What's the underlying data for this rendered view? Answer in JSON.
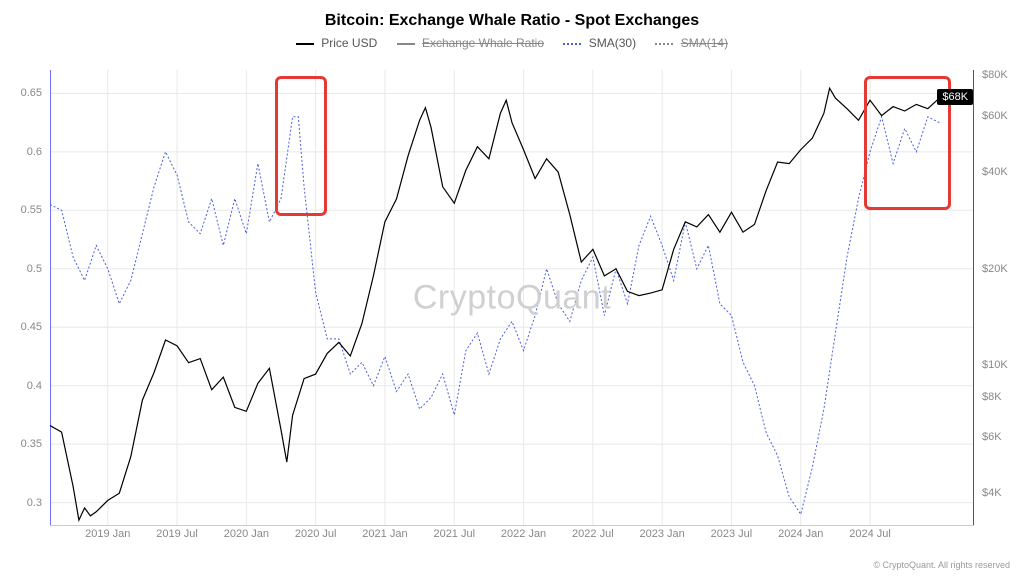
{
  "title": "Bitcoin: Exchange Whale Ratio - Spot Exchanges",
  "legend": {
    "items": [
      {
        "label": "Price USD",
        "color": "#000000",
        "dash": "solid",
        "strike": false
      },
      {
        "label": "Exchange Whale Ratio",
        "color": "#888888",
        "dash": "solid",
        "strike": true
      },
      {
        "label": "SMA(30)",
        "color": "#4a5fe0",
        "dash": "dotted",
        "strike": false
      },
      {
        "label": "SMA(14)",
        "color": "#888888",
        "dash": "dotted",
        "strike": true
      }
    ]
  },
  "watermark": "CryptoQuant",
  "footer": "© CryptoQuant. All rights reserved",
  "plot": {
    "background": "#ffffff",
    "grid_color": "#e8e8e8",
    "axis_color": "#6f6fff",
    "axis_width": 1,
    "x": {
      "min": 0,
      "max": 80,
      "ticks": [
        {
          "pos": 5,
          "label": "2019 Jan"
        },
        {
          "pos": 11,
          "label": "2019 Jul"
        },
        {
          "pos": 17,
          "label": "2020 Jan"
        },
        {
          "pos": 23,
          "label": "2020 Jul"
        },
        {
          "pos": 29,
          "label": "2021 Jan"
        },
        {
          "pos": 35,
          "label": "2021 Jul"
        },
        {
          "pos": 41,
          "label": "2022 Jan"
        },
        {
          "pos": 47,
          "label": "2022 Jul"
        },
        {
          "pos": 53,
          "label": "2023 Jan"
        },
        {
          "pos": 59,
          "label": "2023 Jul"
        },
        {
          "pos": 65,
          "label": "2024 Jan"
        },
        {
          "pos": 71,
          "label": "2024 Jul"
        }
      ]
    },
    "y_left": {
      "min": 0.28,
      "max": 0.67,
      "ticks": [
        {
          "v": 0.3,
          "label": "0.3"
        },
        {
          "v": 0.35,
          "label": "0.35"
        },
        {
          "v": 0.4,
          "label": "0.4"
        },
        {
          "v": 0.45,
          "label": "0.45"
        },
        {
          "v": 0.5,
          "label": "0.5"
        },
        {
          "v": 0.55,
          "label": "0.55"
        },
        {
          "v": 0.6,
          "label": "0.6"
        },
        {
          "v": 0.65,
          "label": "0.65"
        }
      ]
    },
    "y_right": {
      "type": "log",
      "min_log": 3.5,
      "max_log": 4.92,
      "ticks": [
        {
          "v": 4000,
          "label": "$4K"
        },
        {
          "v": 6000,
          "label": "$6K"
        },
        {
          "v": 8000,
          "label": "$8K"
        },
        {
          "v": 10000,
          "label": "$10K"
        },
        {
          "v": 20000,
          "label": "$20K"
        },
        {
          "v": 40000,
          "label": "$40K"
        },
        {
          "v": 60000,
          "label": "$60K"
        },
        {
          "v": 80000,
          "label": "$80K"
        }
      ]
    },
    "series": {
      "price_usd": {
        "axis": "right",
        "color": "#000000",
        "width": 1.2,
        "dash": "none",
        "points": [
          [
            0,
            6500
          ],
          [
            1,
            6200
          ],
          [
            2,
            4200
          ],
          [
            2.5,
            3300
          ],
          [
            3,
            3600
          ],
          [
            3.5,
            3400
          ],
          [
            4,
            3500
          ],
          [
            5,
            3800
          ],
          [
            6,
            4000
          ],
          [
            7,
            5200
          ],
          [
            8,
            7800
          ],
          [
            9,
            9500
          ],
          [
            10,
            12000
          ],
          [
            11,
            11500
          ],
          [
            12,
            10200
          ],
          [
            13,
            10500
          ],
          [
            14,
            8400
          ],
          [
            15,
            9200
          ],
          [
            16,
            7400
          ],
          [
            17,
            7200
          ],
          [
            18,
            8800
          ],
          [
            19,
            9800
          ],
          [
            20,
            6300
          ],
          [
            20.5,
            5000
          ],
          [
            21,
            7000
          ],
          [
            22,
            9100
          ],
          [
            23,
            9400
          ],
          [
            24,
            10900
          ],
          [
            25,
            11800
          ],
          [
            26,
            10700
          ],
          [
            27,
            13500
          ],
          [
            28,
            19000
          ],
          [
            29,
            28000
          ],
          [
            30,
            33000
          ],
          [
            31,
            45000
          ],
          [
            32,
            58000
          ],
          [
            32.5,
            63500
          ],
          [
            33,
            55000
          ],
          [
            34,
            36000
          ],
          [
            35,
            32000
          ],
          [
            36,
            40500
          ],
          [
            37,
            48000
          ],
          [
            38,
            44000
          ],
          [
            39,
            61000
          ],
          [
            39.5,
            67000
          ],
          [
            40,
            57000
          ],
          [
            41,
            47000
          ],
          [
            42,
            38200
          ],
          [
            43,
            44000
          ],
          [
            44,
            40000
          ],
          [
            45,
            29500
          ],
          [
            46,
            21000
          ],
          [
            47,
            23000
          ],
          [
            48,
            19000
          ],
          [
            49,
            20000
          ],
          [
            50,
            17000
          ],
          [
            51,
            16500
          ],
          [
            52,
            16800
          ],
          [
            53,
            17200
          ],
          [
            54,
            23000
          ],
          [
            55,
            28000
          ],
          [
            56,
            27000
          ],
          [
            57,
            29500
          ],
          [
            58,
            26000
          ],
          [
            59,
            30000
          ],
          [
            60,
            26000
          ],
          [
            61,
            27500
          ],
          [
            62,
            35000
          ],
          [
            63,
            43000
          ],
          [
            64,
            42500
          ],
          [
            65,
            47000
          ],
          [
            66,
            51000
          ],
          [
            67,
            61000
          ],
          [
            67.5,
            73000
          ],
          [
            68,
            68000
          ],
          [
            69,
            63000
          ],
          [
            70,
            58000
          ],
          [
            71,
            67000
          ],
          [
            72,
            60000
          ],
          [
            73,
            64000
          ],
          [
            74,
            62000
          ],
          [
            75,
            65000
          ],
          [
            76,
            63000
          ],
          [
            77,
            68000
          ]
        ]
      },
      "sma30": {
        "axis": "left",
        "color": "#4a5fe0",
        "width": 1,
        "dash": "2,2",
        "points": [
          [
            0,
            0.555
          ],
          [
            1,
            0.55
          ],
          [
            2,
            0.51
          ],
          [
            3,
            0.49
          ],
          [
            4,
            0.52
          ],
          [
            5,
            0.5
          ],
          [
            6,
            0.47
          ],
          [
            7,
            0.49
          ],
          [
            8,
            0.53
          ],
          [
            9,
            0.57
          ],
          [
            10,
            0.6
          ],
          [
            11,
            0.58
          ],
          [
            12,
            0.54
          ],
          [
            13,
            0.53
          ],
          [
            14,
            0.56
          ],
          [
            15,
            0.52
          ],
          [
            16,
            0.56
          ],
          [
            17,
            0.53
          ],
          [
            18,
            0.59
          ],
          [
            19,
            0.54
          ],
          [
            20,
            0.56
          ],
          [
            21,
            0.63
          ],
          [
            21.5,
            0.63
          ],
          [
            22,
            0.57
          ],
          [
            23,
            0.48
          ],
          [
            24,
            0.44
          ],
          [
            25,
            0.44
          ],
          [
            26,
            0.41
          ],
          [
            27,
            0.42
          ],
          [
            28,
            0.4
          ],
          [
            29,
            0.425
          ],
          [
            30,
            0.395
          ],
          [
            31,
            0.41
          ],
          [
            32,
            0.38
          ],
          [
            33,
            0.39
          ],
          [
            34,
            0.41
          ],
          [
            35,
            0.375
          ],
          [
            36,
            0.43
          ],
          [
            37,
            0.445
          ],
          [
            38,
            0.41
          ],
          [
            39,
            0.44
          ],
          [
            40,
            0.455
          ],
          [
            41,
            0.43
          ],
          [
            42,
            0.46
          ],
          [
            43,
            0.5
          ],
          [
            44,
            0.47
          ],
          [
            45,
            0.455
          ],
          [
            46,
            0.49
          ],
          [
            47,
            0.51
          ],
          [
            48,
            0.46
          ],
          [
            49,
            0.5
          ],
          [
            50,
            0.47
          ],
          [
            51,
            0.52
          ],
          [
            52,
            0.545
          ],
          [
            53,
            0.52
          ],
          [
            54,
            0.49
          ],
          [
            55,
            0.54
          ],
          [
            56,
            0.5
          ],
          [
            57,
            0.52
          ],
          [
            58,
            0.47
          ],
          [
            59,
            0.46
          ],
          [
            60,
            0.42
          ],
          [
            61,
            0.4
          ],
          [
            62,
            0.36
          ],
          [
            63,
            0.34
          ],
          [
            64,
            0.305
          ],
          [
            65,
            0.29
          ],
          [
            66,
            0.33
          ],
          [
            67,
            0.38
          ],
          [
            68,
            0.445
          ],
          [
            69,
            0.51
          ],
          [
            70,
            0.56
          ],
          [
            71,
            0.6
          ],
          [
            72,
            0.63
          ],
          [
            73,
            0.59
          ],
          [
            74,
            0.62
          ],
          [
            75,
            0.6
          ],
          [
            76,
            0.63
          ],
          [
            77,
            0.625
          ]
        ]
      }
    },
    "highlight_boxes": [
      {
        "id": "box1",
        "x_range": [
          19.5,
          24
        ],
        "yleft_range": [
          0.545,
          0.665
        ]
      },
      {
        "id": "box2",
        "x_range": [
          70.5,
          78
        ],
        "yleft_range": [
          0.55,
          0.665
        ]
      }
    ],
    "price_badge": {
      "text": "$68K",
      "x": 77,
      "y_right": 68000
    }
  }
}
